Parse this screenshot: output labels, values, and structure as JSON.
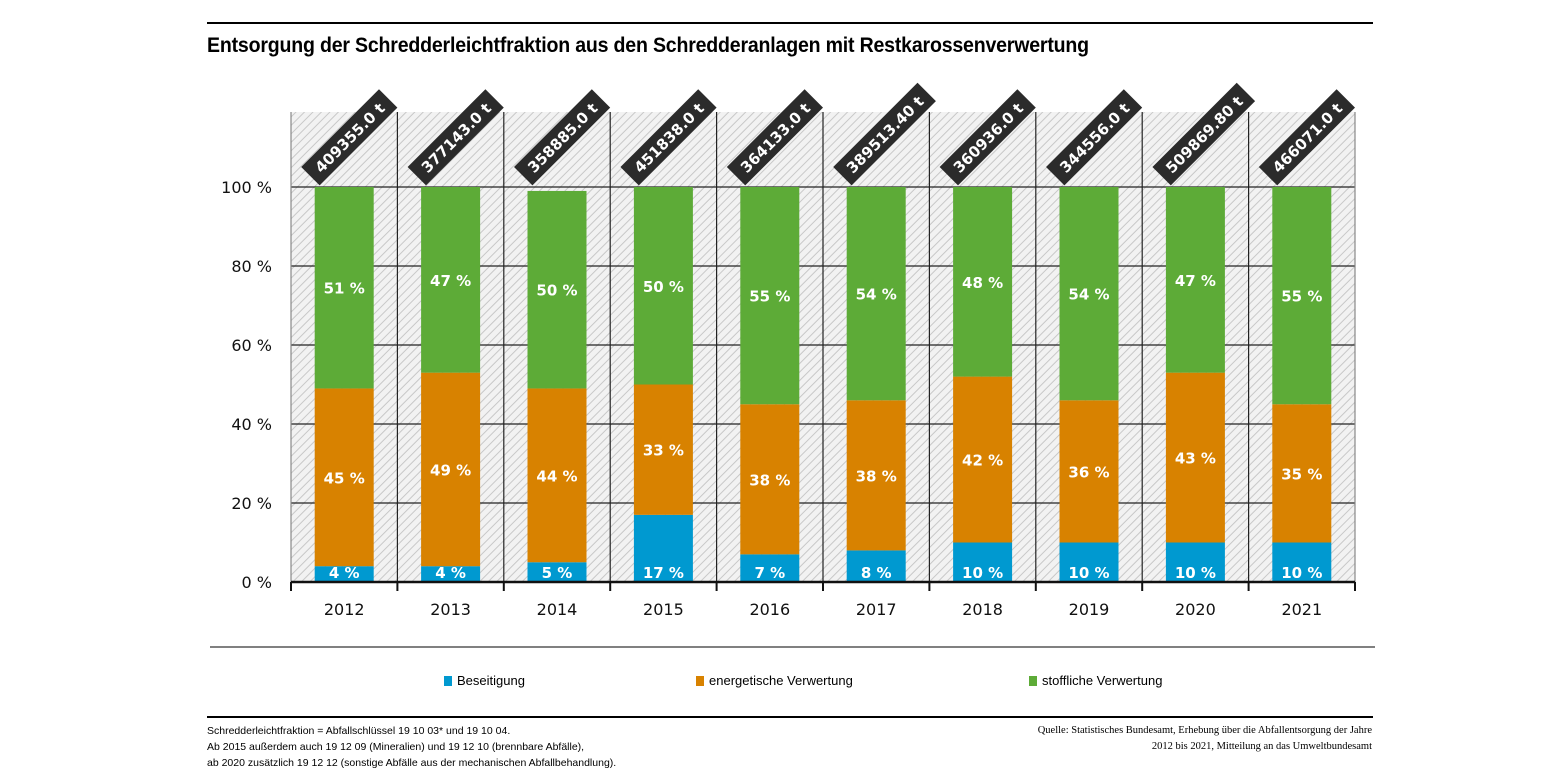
{
  "title": "Entsorgung der Schredderleichtfraktion aus den Schredderanlagen mit Restkarossenverwertung",
  "colors": {
    "beseitigung": "#0099d0",
    "energetisch": "#d88200",
    "stofflich": "#5dab37",
    "total_label_bg": "#2b2b2b"
  },
  "chart_data": {
    "type": "bar",
    "stacked": true,
    "title": "Entsorgung der Schredderleichtfraktion aus den Schredderanlagen mit Restkarossenverwertung",
    "xlabel": "",
    "ylabel": "",
    "ylim": [
      0,
      100
    ],
    "y_ticks": [
      "0 %",
      "20 %",
      "40 %",
      "60 %",
      "80 %",
      "100 %"
    ],
    "categories": [
      "2012",
      "2013",
      "2014",
      "2015",
      "2016",
      "2017",
      "2018",
      "2019",
      "2020",
      "2021"
    ],
    "series": [
      {
        "name": "Beseitigung",
        "values": [
          4,
          4,
          5,
          17,
          7,
          8,
          10,
          10,
          10,
          10
        ],
        "labels": [
          "4 %",
          "4 %",
          "5 %",
          "17 %",
          "7 %",
          "8 %",
          "10 %",
          "10 %",
          "10 %",
          "10 %"
        ]
      },
      {
        "name": "energetische Verwertung",
        "values": [
          45,
          49,
          44,
          33,
          38,
          38,
          42,
          36,
          43,
          35
        ],
        "labels": [
          "45 %",
          "49 %",
          "44 %",
          "33 %",
          "38 %",
          "38 %",
          "42 %",
          "36 %",
          "43 %",
          "35 %"
        ]
      },
      {
        "name": "stoffliche Verwertung",
        "values": [
          51,
          47,
          50,
          50,
          55,
          54,
          48,
          54,
          47,
          55
        ],
        "labels": [
          "51 %",
          "47 %",
          "50 %",
          "50 %",
          "55 %",
          "54 %",
          "48 %",
          "54 %",
          "47 %",
          "55 %"
        ]
      }
    ],
    "totals": [
      "409355.0 t",
      "377143.0 t",
      "358885.0 t",
      "451838.0 t",
      "364133.0 t",
      "389513.40 t",
      "360936.0 t",
      "344556.0 t",
      "509869.80 t",
      "466071.0 t"
    ],
    "grid": true,
    "legend": "bottom"
  },
  "legend": [
    {
      "label": "Beseitigung"
    },
    {
      "label": "energetische Verwertung"
    },
    {
      "label": "stoffliche Verwertung"
    }
  ],
  "footnote": {
    "lines": [
      "Schredderleichtfraktion = Abfallschlüssel 19 10 03* und 19 10 04.",
      "Ab 2015 außerdem auch 19 12 09 (Mineralien) und 19 12 10 (brennbare Abfälle),",
      "ab 2020 zusätzlich 19 12 12 (sonstige Abfälle aus der mechanischen Abfallbehandlung)."
    ]
  },
  "source": {
    "lines": [
      "Quelle: Statistisches Bundesamt, Erhebung über die Abfallentsorgung der Jahre",
      "2012 bis 2021, Mitteilung an das Umweltbundesamt"
    ]
  }
}
